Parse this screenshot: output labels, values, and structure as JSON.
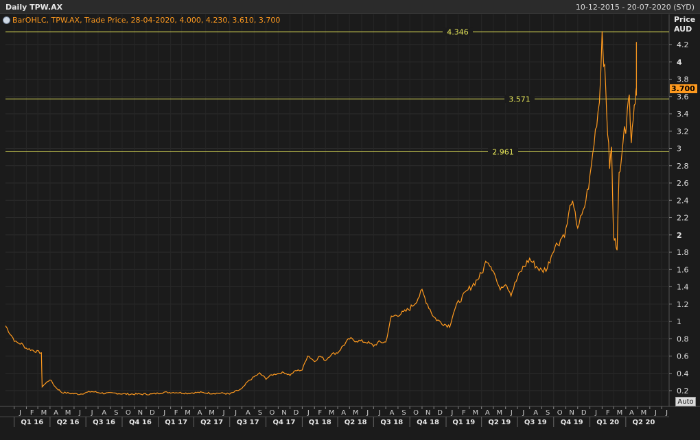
{
  "header": {
    "title": "Daily TPW.AX",
    "date_range": "10-12-2015 - 20-07-2020 (SYD)"
  },
  "legend": {
    "text": "BarOHLC, TPW.AX, Trade Price, 28-04-2020, 4.000, 4.230, 3.610, 3.700"
  },
  "axis": {
    "price_label": "Price",
    "unit_label": "AUD",
    "auto_label": "Auto",
    "last_price": "3.700"
  },
  "colors": {
    "background": "#1b1b1b",
    "series": "#ff9a1f",
    "hline": "#e8e85a",
    "grid": "#2e2e2e"
  },
  "chart_data": {
    "type": "line",
    "title": "Daily TPW.AX",
    "ylabel": "Price AUD",
    "ylim": [
      0.1,
      4.5
    ],
    "yticks": [
      {
        "value": 0.2,
        "label": "0.2",
        "bold": false
      },
      {
        "value": 0.4,
        "label": "0.4",
        "bold": false
      },
      {
        "value": 0.6,
        "label": "0.6",
        "bold": false
      },
      {
        "value": 0.8,
        "label": "0.8",
        "bold": false
      },
      {
        "value": 1.0,
        "label": "1",
        "bold": false
      },
      {
        "value": 1.2,
        "label": "1.2",
        "bold": false
      },
      {
        "value": 1.4,
        "label": "1.4",
        "bold": false
      },
      {
        "value": 1.6,
        "label": "1.6",
        "bold": false
      },
      {
        "value": 1.8,
        "label": "1.8",
        "bold": false
      },
      {
        "value": 2.0,
        "label": "2",
        "bold": true
      },
      {
        "value": 2.2,
        "label": "2.2",
        "bold": false
      },
      {
        "value": 2.4,
        "label": "2.4",
        "bold": false
      },
      {
        "value": 2.6,
        "label": "2.6",
        "bold": false
      },
      {
        "value": 2.8,
        "label": "2.8",
        "bold": false
      },
      {
        "value": 3.0,
        "label": "3",
        "bold": false
      },
      {
        "value": 3.2,
        "label": "3.2",
        "bold": false
      },
      {
        "value": 3.4,
        "label": "3.4",
        "bold": false
      },
      {
        "value": 3.6,
        "label": "3.6",
        "bold": false
      },
      {
        "value": 3.8,
        "label": "3.8",
        "bold": false
      },
      {
        "value": 4.0,
        "label": "4",
        "bold": true
      },
      {
        "value": 4.2,
        "label": "4.2",
        "bold": false
      }
    ],
    "x_start": "2015-12-10",
    "x_end": "2020-07-20",
    "months": [
      {
        "date": "2016-01-01",
        "label": "J"
      },
      {
        "date": "2016-02-01",
        "label": "F"
      },
      {
        "date": "2016-03-01",
        "label": "M"
      },
      {
        "date": "2016-04-01",
        "label": "A"
      },
      {
        "date": "2016-05-01",
        "label": "M"
      },
      {
        "date": "2016-06-01",
        "label": "J"
      },
      {
        "date": "2016-07-01",
        "label": "J"
      },
      {
        "date": "2016-08-01",
        "label": "A"
      },
      {
        "date": "2016-09-01",
        "label": "S"
      },
      {
        "date": "2016-10-01",
        "label": "O"
      },
      {
        "date": "2016-11-01",
        "label": "N"
      },
      {
        "date": "2016-12-01",
        "label": "D"
      },
      {
        "date": "2017-01-01",
        "label": "J"
      },
      {
        "date": "2017-02-01",
        "label": "F"
      },
      {
        "date": "2017-03-01",
        "label": "M"
      },
      {
        "date": "2017-04-01",
        "label": "A"
      },
      {
        "date": "2017-05-01",
        "label": "M"
      },
      {
        "date": "2017-06-01",
        "label": "J"
      },
      {
        "date": "2017-07-01",
        "label": "J"
      },
      {
        "date": "2017-08-01",
        "label": "A"
      },
      {
        "date": "2017-09-01",
        "label": "S"
      },
      {
        "date": "2017-10-01",
        "label": "O"
      },
      {
        "date": "2017-11-01",
        "label": "N"
      },
      {
        "date": "2017-12-01",
        "label": "D"
      },
      {
        "date": "2018-01-01",
        "label": "J"
      },
      {
        "date": "2018-02-01",
        "label": "F"
      },
      {
        "date": "2018-03-01",
        "label": "M"
      },
      {
        "date": "2018-04-01",
        "label": "A"
      },
      {
        "date": "2018-05-01",
        "label": "M"
      },
      {
        "date": "2018-06-01",
        "label": "J"
      },
      {
        "date": "2018-07-01",
        "label": "J"
      },
      {
        "date": "2018-08-01",
        "label": "A"
      },
      {
        "date": "2018-09-01",
        "label": "S"
      },
      {
        "date": "2018-10-01",
        "label": "O"
      },
      {
        "date": "2018-11-01",
        "label": "N"
      },
      {
        "date": "2018-12-01",
        "label": "D"
      },
      {
        "date": "2019-01-01",
        "label": "J"
      },
      {
        "date": "2019-02-01",
        "label": "F"
      },
      {
        "date": "2019-03-01",
        "label": "M"
      },
      {
        "date": "2019-04-01",
        "label": "A"
      },
      {
        "date": "2019-05-01",
        "label": "M"
      },
      {
        "date": "2019-06-01",
        "label": "J"
      },
      {
        "date": "2019-07-01",
        "label": "J"
      },
      {
        "date": "2019-08-01",
        "label": "A"
      },
      {
        "date": "2019-09-01",
        "label": "S"
      },
      {
        "date": "2019-10-01",
        "label": "O"
      },
      {
        "date": "2019-11-01",
        "label": "N"
      },
      {
        "date": "2019-12-01",
        "label": "D"
      },
      {
        "date": "2020-01-01",
        "label": "J"
      },
      {
        "date": "2020-02-01",
        "label": "F"
      },
      {
        "date": "2020-03-01",
        "label": "M"
      },
      {
        "date": "2020-04-01",
        "label": "A"
      },
      {
        "date": "2020-05-01",
        "label": "M"
      },
      {
        "date": "2020-06-01",
        "label": "J"
      },
      {
        "date": "2020-07-01",
        "label": "J"
      }
    ],
    "quarters": [
      {
        "start": "2016-01-01",
        "end": "2016-04-01",
        "label": "Q1 16"
      },
      {
        "start": "2016-04-01",
        "end": "2016-07-01",
        "label": "Q2 16"
      },
      {
        "start": "2016-07-01",
        "end": "2016-10-01",
        "label": "Q3 16"
      },
      {
        "start": "2016-10-01",
        "end": "2017-01-01",
        "label": "Q4 16"
      },
      {
        "start": "2017-01-01",
        "end": "2017-04-01",
        "label": "Q1 17"
      },
      {
        "start": "2017-04-01",
        "end": "2017-07-01",
        "label": "Q2 17"
      },
      {
        "start": "2017-07-01",
        "end": "2017-10-01",
        "label": "Q3 17"
      },
      {
        "start": "2017-10-01",
        "end": "2018-01-01",
        "label": "Q4 17"
      },
      {
        "start": "2018-01-01",
        "end": "2018-04-01",
        "label": "Q1 18"
      },
      {
        "start": "2018-04-01",
        "end": "2018-07-01",
        "label": "Q2 18"
      },
      {
        "start": "2018-07-01",
        "end": "2018-10-01",
        "label": "Q3 18"
      },
      {
        "start": "2018-10-01",
        "end": "2019-01-01",
        "label": "Q4 18"
      },
      {
        "start": "2019-01-01",
        "end": "2019-04-01",
        "label": "Q1 19"
      },
      {
        "start": "2019-04-01",
        "end": "2019-07-01",
        "label": "Q2 19"
      },
      {
        "start": "2019-07-01",
        "end": "2019-10-01",
        "label": "Q3 19"
      },
      {
        "start": "2019-10-01",
        "end": "2020-01-01",
        "label": "Q4 19"
      },
      {
        "start": "2020-01-01",
        "end": "2020-04-01",
        "label": "Q1 20"
      },
      {
        "start": "2020-04-01",
        "end": "2020-07-01",
        "label": "Q2 20"
      }
    ],
    "hlines": [
      {
        "value": 4.346,
        "label": "4.346"
      },
      {
        "value": 3.571,
        "label": "3.571"
      },
      {
        "value": 2.961,
        "label": "2.961"
      }
    ],
    "series": [
      {
        "x": [
          "2015-12-10",
          "2015-12-22",
          "2016-01-05",
          "2016-01-20",
          "2016-02-01",
          "2016-02-15",
          "2016-02-28",
          "2016-03-10",
          "2016-03-12",
          "2016-03-20",
          "2016-04-01",
          "2016-04-15",
          "2016-05-01",
          "2016-05-20",
          "2016-06-15",
          "2016-07-15",
          "2016-08-15",
          "2016-09-15",
          "2016-10-15",
          "2016-11-15",
          "2016-12-15",
          "2017-01-15",
          "2017-02-15",
          "2017-03-15",
          "2017-04-15",
          "2017-05-15",
          "2017-06-15",
          "2017-07-01",
          "2017-07-15",
          "2017-08-01",
          "2017-08-15",
          "2017-09-01",
          "2017-09-15",
          "2017-10-01",
          "2017-10-15",
          "2017-11-01",
          "2017-11-15",
          "2017-12-01",
          "2017-12-15",
          "2018-01-01",
          "2018-01-15",
          "2018-02-01",
          "2018-02-15",
          "2018-03-01",
          "2018-03-15",
          "2018-04-01",
          "2018-04-15",
          "2018-05-01",
          "2018-05-15",
          "2018-06-01",
          "2018-06-15",
          "2018-07-01",
          "2018-07-15",
          "2018-08-01",
          "2018-08-15",
          "2018-09-01",
          "2018-09-15",
          "2018-10-01",
          "2018-10-15",
          "2018-11-01",
          "2018-11-15",
          "2018-12-01",
          "2018-12-15",
          "2019-01-01",
          "2019-01-10",
          "2019-01-20",
          "2019-02-01",
          "2019-02-15",
          "2019-03-01",
          "2019-03-15",
          "2019-04-01",
          "2019-04-15",
          "2019-05-01",
          "2019-05-15",
          "2019-06-01",
          "2019-06-15",
          "2019-07-01",
          "2019-07-15",
          "2019-08-01",
          "2019-08-15",
          "2019-09-01",
          "2019-09-15",
          "2019-10-01",
          "2019-10-15",
          "2019-11-01",
          "2019-11-15",
          "2019-12-01",
          "2019-12-15",
          "2020-01-01",
          "2020-01-15",
          "2020-01-25",
          "2020-02-01",
          "2020-02-05",
          "2020-02-10",
          "2020-02-15",
          "2020-02-20",
          "2020-02-25",
          "2020-03-01",
          "2020-03-05",
          "2020-03-10",
          "2020-03-15",
          "2020-03-20",
          "2020-03-25",
          "2020-04-01",
          "2020-04-05",
          "2020-04-10",
          "2020-04-15",
          "2020-04-20",
          "2020-04-25",
          "2020-04-28"
        ],
        "y": [
          0.95,
          0.86,
          0.76,
          0.74,
          0.69,
          0.67,
          0.65,
          0.64,
          0.25,
          0.28,
          0.33,
          0.24,
          0.18,
          0.17,
          0.16,
          0.19,
          0.17,
          0.17,
          0.16,
          0.16,
          0.16,
          0.18,
          0.18,
          0.17,
          0.18,
          0.17,
          0.17,
          0.16,
          0.19,
          0.22,
          0.3,
          0.36,
          0.4,
          0.34,
          0.38,
          0.4,
          0.41,
          0.38,
          0.43,
          0.44,
          0.61,
          0.54,
          0.6,
          0.55,
          0.62,
          0.64,
          0.72,
          0.8,
          0.78,
          0.77,
          0.76,
          0.72,
          0.76,
          0.76,
          1.05,
          1.08,
          1.1,
          1.15,
          1.22,
          1.35,
          1.2,
          1.05,
          1.0,
          0.96,
          0.95,
          1.1,
          1.22,
          1.3,
          1.38,
          1.45,
          1.55,
          1.72,
          1.6,
          1.38,
          1.45,
          1.32,
          1.5,
          1.62,
          1.72,
          1.65,
          1.58,
          1.62,
          1.85,
          1.92,
          2.05,
          2.4,
          2.1,
          2.25,
          2.65,
          3.2,
          3.55,
          4.35,
          4.05,
          3.7,
          3.2,
          2.8,
          3.0,
          1.95,
          2.0,
          1.8,
          2.7,
          2.9,
          3.1,
          3.25,
          3.5,
          3.6,
          3.1,
          3.4,
          3.6,
          3.7
        ]
      }
    ]
  }
}
